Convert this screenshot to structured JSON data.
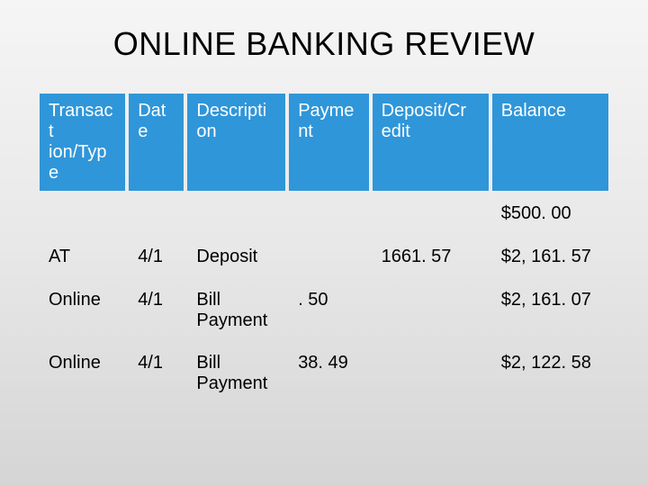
{
  "title": "ONLINE BANKING REVIEW",
  "table": {
    "type": "table",
    "header_bg": "#2f96d9",
    "header_fg": "#ffffff",
    "cell_fg": "#000000",
    "font_family": "Arial",
    "header_fontsize": 20,
    "cell_fontsize": 20,
    "columns": [
      {
        "label": "Transact ion/Type",
        "width_pct": 14
      },
      {
        "label": "Date",
        "width_pct": 9
      },
      {
        "label": "Descripti on",
        "width_pct": 16
      },
      {
        "label": "Payme nt",
        "width_pct": 13
      },
      {
        "label": "Deposit/Cr edit",
        "width_pct": 19
      },
      {
        "label": "Balance",
        "width_pct": 19
      }
    ],
    "rows": [
      [
        "",
        "",
        "",
        "",
        "",
        "$500. 00"
      ],
      [
        "AT",
        "4/1",
        "Deposit",
        "",
        "1661. 57",
        "$2, 161. 57"
      ],
      [
        "Online",
        "4/1",
        "Bill Payment",
        ". 50",
        "",
        "$2, 161. 07"
      ],
      [
        "Online",
        "4/1",
        "Bill Payment",
        "38. 49",
        "",
        "$2, 122. 58"
      ]
    ]
  },
  "background_gradient": {
    "top": "#f5f5f5",
    "bottom": "#d5d5d5"
  }
}
